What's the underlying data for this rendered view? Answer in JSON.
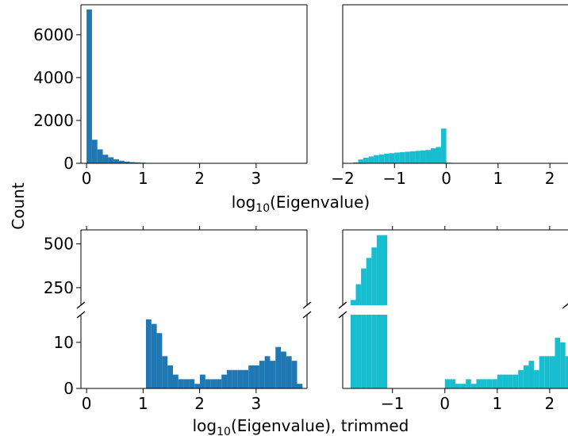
{
  "figure": {
    "ylabel": "Count",
    "xlabel_top": {
      "base": "log",
      "sub": "10",
      "rest": "(Eigenvalue)"
    },
    "xlabel_bottom": {
      "base": "log",
      "sub": "10",
      "rest": "(Eigenvalue), trimmed"
    }
  },
  "colors": {
    "blue": "#1f77b4",
    "cyan": "#17becf",
    "axis": "#000000",
    "background": "#ffffff"
  },
  "chart_data": [
    {
      "id": "top-left",
      "type": "bar",
      "color": "#1f77b4",
      "xlim": [
        -0.1,
        3.9
      ],
      "ylim": [
        0,
        7400
      ],
      "xticks": [
        0,
        1,
        2,
        3
      ],
      "xtick_labels": [
        "0",
        "1",
        "2",
        "3"
      ],
      "yticks": [
        0,
        2000,
        4000,
        6000
      ],
      "ytick_labels": [
        "0",
        "2000",
        "4000",
        "6000"
      ],
      "bin_start": 0.0,
      "bin_width": 0.0955,
      "values": [
        7180,
        1100,
        650,
        400,
        280,
        190,
        120,
        80,
        55,
        40,
        28,
        20,
        15,
        11,
        9,
        7,
        6,
        5,
        5,
        4,
        4,
        4,
        4,
        4,
        4,
        5,
        5,
        5,
        6,
        6,
        6,
        7,
        8,
        8,
        7,
        6,
        5,
        4,
        3,
        2
      ]
    },
    {
      "id": "top-right",
      "type": "bar",
      "color": "#17becf",
      "xlim": [
        -2,
        2.35
      ],
      "ylim": [
        0,
        7400
      ],
      "xticks": [
        -2,
        -1,
        0,
        1,
        2
      ],
      "xtick_labels": [
        "−2",
        "−1",
        "0",
        "1",
        "2"
      ],
      "bin_start": -1.9,
      "bin_width": 0.1,
      "values": [
        0,
        40,
        180,
        260,
        320,
        380,
        410,
        450,
        470,
        500,
        520,
        540,
        560,
        580,
        600,
        620,
        700,
        760,
        1620,
        30,
        15,
        10,
        8,
        6,
        6,
        5,
        5,
        5,
        6,
        6,
        6,
        7,
        7,
        7,
        8,
        9,
        11,
        10,
        6,
        4,
        3,
        2
      ]
    },
    {
      "id": "bottom-left",
      "type": "bar",
      "broken_axis": true,
      "color": "#1f77b4",
      "xlim": [
        -0.1,
        3.9
      ],
      "upper_ylim": [
        150,
        580
      ],
      "upper_yticks": [
        250,
        500
      ],
      "upper_ytick_labels": [
        "250",
        "500"
      ],
      "lower_ylim": [
        0,
        16
      ],
      "lower_yticks": [
        0,
        10
      ],
      "lower_ytick_labels": [
        "0",
        "10"
      ],
      "xticks": [
        0,
        1,
        2,
        3
      ],
      "xtick_labels": [
        "0",
        "1",
        "2",
        "3"
      ],
      "bin_start": 0.0,
      "bin_width": 0.0955,
      "values": [
        0,
        0,
        0,
        0,
        0,
        0,
        0,
        0,
        0,
        0,
        0,
        15,
        14,
        12,
        7,
        5,
        3,
        2,
        2,
        2,
        1,
        3,
        2,
        2,
        2,
        3,
        4,
        4,
        4,
        4,
        5,
        5,
        6,
        7,
        6,
        9,
        8,
        7,
        6,
        1
      ]
    },
    {
      "id": "bottom-right",
      "type": "bar",
      "broken_axis": true,
      "color": "#17becf",
      "xlim": [
        -1.95,
        2.35
      ],
      "upper_ylim": [
        150,
        580
      ],
      "lower_ylim": [
        0,
        16
      ],
      "xticks": [
        -1,
        0,
        1,
        2
      ],
      "xtick_labels": [
        "−1",
        "0",
        "1",
        "2"
      ],
      "bin_start": -1.8,
      "bin_width": 0.1,
      "values": [
        180,
        270,
        360,
        420,
        480,
        550,
        550,
        0,
        0,
        0,
        0,
        0,
        0,
        0,
        0,
        0,
        0,
        0,
        2,
        2,
        1,
        1,
        2,
        1,
        2,
        2,
        2,
        2,
        3,
        3,
        3,
        3,
        4,
        5,
        6,
        4,
        7,
        7,
        7,
        11,
        10,
        7
      ]
    }
  ]
}
